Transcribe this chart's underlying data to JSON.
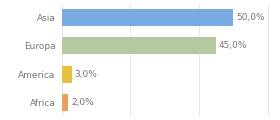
{
  "categories": [
    "Asia",
    "Europa",
    "America",
    "Africa"
  ],
  "values": [
    50.0,
    45.0,
    3.0,
    2.0
  ],
  "bar_colors": [
    "#7aabe0",
    "#b5c9a0",
    "#e8c040",
    "#e8a060"
  ],
  "xlim": [
    0,
    62
  ],
  "background_color": "#ffffff",
  "text_color": "#777777",
  "bar_height": 0.6,
  "label_fontsize": 6.5,
  "tick_fontsize": 6.5
}
